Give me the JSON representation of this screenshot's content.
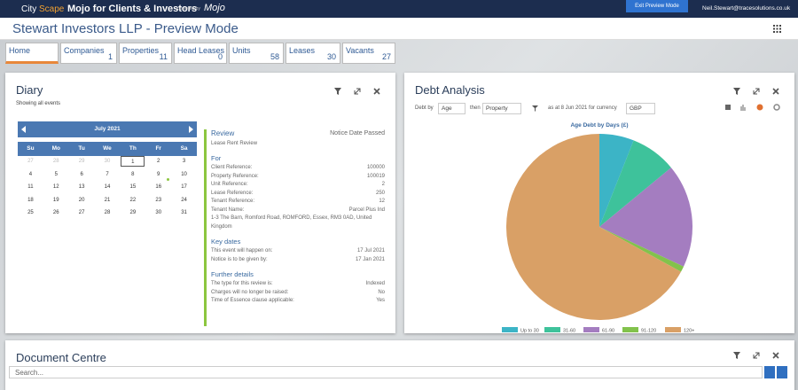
{
  "topbar": {
    "brand_city": "City",
    "brand_scape": "Scape",
    "app_name": "Mojo for Clients & Investors",
    "powered_by": "powered by",
    "logo": "Mojo",
    "exit_button": "Exit Preview Mode",
    "user": "Neil.Stewart@tracesolutions.co.uk"
  },
  "page_title": "Stewart Investors LLP - Preview Mode",
  "tabs": [
    {
      "label": "Home"
    },
    {
      "label": "Companies",
      "count": 1
    },
    {
      "label": "Properties",
      "count": 11
    },
    {
      "label": "Head Leases",
      "count": 0
    },
    {
      "label": "Units",
      "count": 58
    },
    {
      "label": "Leases",
      "count": 30
    },
    {
      "label": "Vacants",
      "count": 27
    }
  ],
  "diary": {
    "title": "Diary",
    "subtitle": "Showing all events",
    "calendar": {
      "month": "July 2021",
      "weekdays": [
        "Su",
        "Mo",
        "Tu",
        "We",
        "Th",
        "Fr",
        "Sa"
      ],
      "weeks": [
        [
          27,
          28,
          29,
          30,
          1,
          2,
          3
        ],
        [
          4,
          5,
          6,
          7,
          8,
          9,
          10
        ],
        [
          11,
          12,
          13,
          14,
          15,
          16,
          17
        ],
        [
          18,
          19,
          20,
          21,
          22,
          23,
          24
        ],
        [
          25,
          26,
          27,
          28,
          29,
          30,
          31
        ]
      ]
    },
    "detail": {
      "heading": "Review",
      "status": "Notice Date Passed",
      "subheading": "Lease Rent Review",
      "sections": [
        {
          "title": "For",
          "rows": [
            [
              "Client Reference:",
              "100000"
            ],
            [
              "Property Reference:",
              "100019"
            ],
            [
              "Unit Reference:",
              "2"
            ],
            [
              "Lease Reference:",
              "250"
            ],
            [
              "Tenant Reference:",
              "12"
            ],
            [
              "Tenant Name:",
              "Parcel Plus Ind"
            ]
          ],
          "note": "1-3 The Barn, Romford Road, ROMFORD, Essex, RM3 0AD, United Kingdom"
        },
        {
          "title": "Key dates",
          "rows": [
            [
              "This event will happen on:",
              "17 Jul 2021"
            ],
            [
              "Notice is to be given by:",
              "17 Jan 2021"
            ]
          ]
        },
        {
          "title": "Further details",
          "rows": [
            [
              "The type for this review is:",
              "Indexed"
            ],
            [
              "Charges will no longer be raised:",
              "No"
            ],
            [
              "Time of Essence clause applicable:",
              "Yes"
            ]
          ]
        }
      ]
    }
  },
  "debt": {
    "title": "Debt Analysis",
    "debt_by": "Debt by",
    "group1": "Age",
    "then": "then",
    "group2": "Property",
    "as_at": "as at 8 Jun 2021 for currency",
    "currency": "GBP"
  },
  "chart_data": {
    "type": "pie",
    "title": "Age Debt by Days (£)",
    "categories": [
      "Up to 30",
      "31-60",
      "61-90",
      "91-120",
      "120+"
    ],
    "values": [
      6,
      8,
      18,
      1,
      67
    ],
    "colors": [
      "#3cb4c6",
      "#3ec29b",
      "#a47dc0",
      "#82c24c",
      "#d9a066"
    ]
  },
  "documents": {
    "title": "Document Centre",
    "search_placeholder": "Search..."
  }
}
